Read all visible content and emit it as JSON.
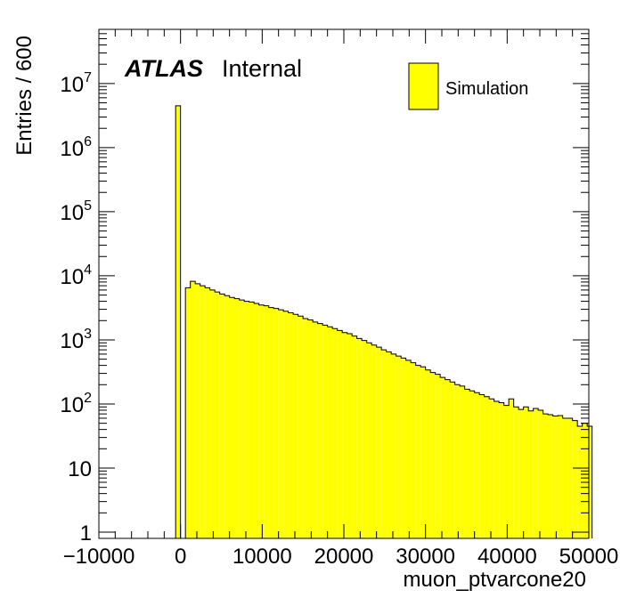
{
  "chart_data": {
    "type": "histogram",
    "xlabel": "muon_ptvarcone20",
    "ylabel": "Entries / 600",
    "xlim": [
      -10000,
      50000
    ],
    "ylim": [
      0.8,
      70000000
    ],
    "yscale": "log",
    "bin_width": 600,
    "fill_color": "#ffff00",
    "edge_color": "#000000",
    "x_ticks": [
      -10000,
      0,
      10000,
      20000,
      30000,
      40000,
      50000
    ],
    "x_tick_labels": [
      "−10000",
      "0",
      "10000",
      "20000",
      "30000",
      "40000",
      "50000"
    ],
    "y_ticks": [
      {
        "value": 1,
        "base": "1",
        "exp": ""
      },
      {
        "value": 10,
        "base": "10",
        "exp": ""
      },
      {
        "value": 100,
        "base": "10",
        "exp": "2"
      },
      {
        "value": 1000,
        "base": "10",
        "exp": "3"
      },
      {
        "value": 10000,
        "base": "10",
        "exp": "4"
      },
      {
        "value": 100000,
        "base": "10",
        "exp": "5"
      },
      {
        "value": 1000000,
        "base": "10",
        "exp": "6"
      },
      {
        "value": 10000000,
        "base": "10",
        "exp": "7"
      }
    ],
    "legend": {
      "entries": [
        "Simulation"
      ],
      "placement": "top-right"
    },
    "annotation": {
      "brand": "ATLAS",
      "status": "Internal"
    },
    "bin_starts": [
      -600,
      0,
      600,
      1200,
      1800,
      2400,
      3000,
      3600,
      4200,
      4800,
      5400,
      6000,
      6600,
      7200,
      7800,
      8400,
      9000,
      9600,
      10200,
      10800,
      11400,
      12000,
      12600,
      13200,
      13800,
      14400,
      15000,
      15600,
      16200,
      16800,
      17400,
      18000,
      18600,
      19200,
      19800,
      20400,
      21000,
      21600,
      22200,
      22800,
      23400,
      24000,
      24600,
      25200,
      25800,
      26400,
      27000,
      27600,
      28200,
      28800,
      29400,
      30000,
      30600,
      31200,
      31800,
      32400,
      33000,
      33600,
      34200,
      34800,
      35400,
      36000,
      36600,
      37200,
      37800,
      38400,
      39000,
      39600,
      40200,
      40800,
      41400,
      42000,
      42600,
      43200,
      43800,
      44400,
      45000,
      45600,
      46200,
      46800,
      47400,
      48000,
      48600,
      49200,
      49800
    ],
    "values": [
      4500000,
      0,
      6500,
      8200,
      7500,
      7000,
      6500,
      6000,
      5600,
      5200,
      4900,
      4600,
      4400,
      4200,
      4000,
      3900,
      3700,
      3500,
      3400,
      3200,
      3100,
      2950,
      2800,
      2650,
      2500,
      2350,
      2150,
      2050,
      1900,
      1800,
      1700,
      1600,
      1500,
      1400,
      1300,
      1250,
      1150,
      1050,
      980,
      900,
      830,
      770,
      700,
      650,
      600,
      560,
      520,
      480,
      440,
      400,
      380,
      340,
      310,
      290,
      260,
      240,
      220,
      200,
      190,
      170,
      160,
      150,
      140,
      130,
      120,
      110,
      105,
      95,
      120,
      90,
      82,
      90,
      78,
      85,
      80,
      70,
      68,
      65,
      66,
      60,
      60,
      55,
      45,
      50,
      45
    ]
  }
}
